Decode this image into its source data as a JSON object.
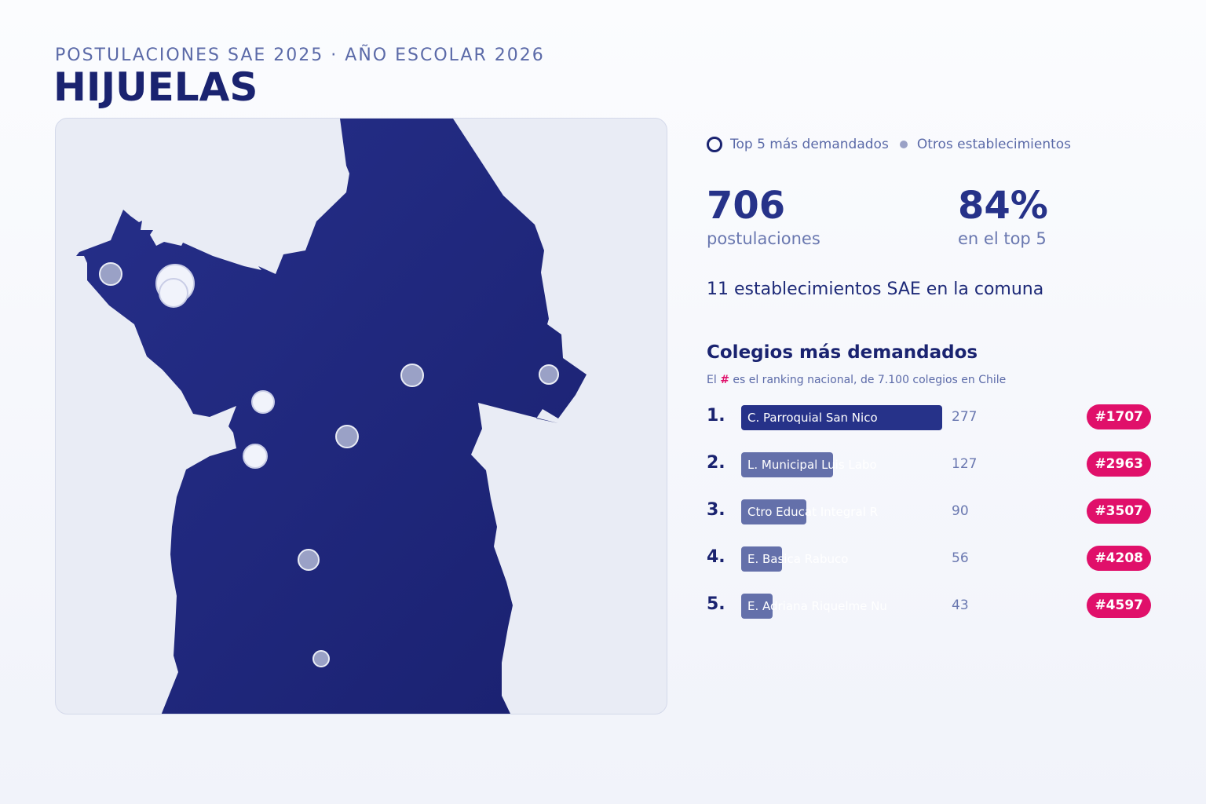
{
  "header": {
    "subtitle": "POSTULACIONES SAE 2025 · AÑO ESCOLAR 2026",
    "title": "HIJUELAS"
  },
  "legend": {
    "top_label": "Top 5 más demandados",
    "other_label": "Otros establecimientos"
  },
  "stats": {
    "applications_value": "706",
    "applications_label": "postulaciones",
    "top5_value": "84%",
    "top5_label": "en el top 5",
    "schools_line": "11 establecimientos SAE en la comuna"
  },
  "ranking": {
    "title": "Colegios más demandados",
    "note_prefix": "El ",
    "note_hash": "#",
    "note_suffix": " es el ranking nacional, de 7.100 colegios en Chile",
    "max_value": 277,
    "items": [
      {
        "pos": "1.",
        "name": "C. Parroquial San Nico",
        "value": 277,
        "value_label": "277",
        "rank": "#1707"
      },
      {
        "pos": "2.",
        "name": "L. Municipal Luis Labo",
        "value": 127,
        "value_label": "127",
        "rank": "#2963"
      },
      {
        "pos": "3.",
        "name": "Ctro Educat Integral R",
        "value": 90,
        "value_label": "90",
        "rank": "#3507"
      },
      {
        "pos": "4.",
        "name": "E. Basica Rabuco",
        "value": 56,
        "value_label": "56",
        "rank": "#4208"
      },
      {
        "pos": "5.",
        "name": "E. Adriana Riquelme Nu",
        "value": 43,
        "value_label": "43",
        "rank": "#4597"
      }
    ]
  },
  "colors": {
    "region_fill": "#1f267c",
    "map_bg": "#e9ecf5",
    "top_marker": "#f1f3fb",
    "other_marker": "#9aa1c6",
    "badge": "#e0106a"
  }
}
